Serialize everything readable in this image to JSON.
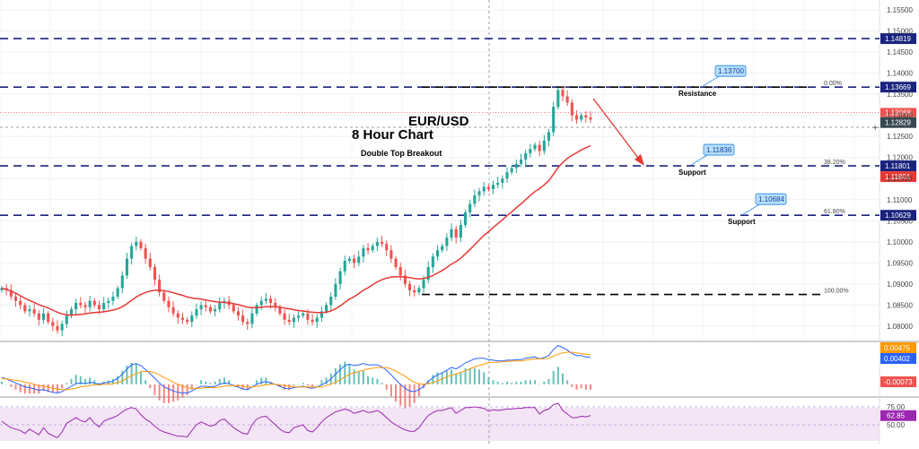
{
  "chart_data": {
    "type": "candlestick",
    "title": "EUR/USD",
    "subtitle": "8 Hour Chart",
    "annotation": "Double Top Breakout",
    "colors": {
      "up": "#26a69a",
      "down": "#ef5350",
      "level": "#1a237e",
      "ma": "#e53935",
      "macd": "#2962ff",
      "signal": "#ff9800",
      "rsi": "#9c27b0",
      "rsi_band": "#f3e5f5"
    },
    "price_axis": {
      "ticks": [
        "1.15500",
        "1.15000",
        "1.14500",
        "1.14000",
        "1.13500",
        "1.13000",
        "1.12500",
        "1.12000",
        "1.11500",
        "1.11000",
        "1.10500",
        "1.10000",
        "1.09500",
        "1.09000",
        "1.08500",
        "1.08000"
      ],
      "last_price": "1.12829"
    },
    "levels": [
      {
        "price": 1.14819,
        "label": "1.14819",
        "note": ""
      },
      {
        "price": 1.13669,
        "label": "1.13669",
        "note": "Resistance",
        "callout": "1.13700",
        "fib": "0.00%"
      },
      {
        "price": 1.11801,
        "label": "1.11801",
        "note": "Support",
        "callout": "1.11836",
        "fib": "38.20%"
      },
      {
        "price": 1.10629,
        "label": "1.10629",
        "note": "Support",
        "callout": "1.10684",
        "fib": "61.80%"
      }
    ],
    "low_level": {
      "price": 1.0875,
      "fib": "100.00%"
    },
    "extra_labels": [
      "1.13068",
      "1.11801"
    ],
    "closes": [
      1.089,
      1.0885,
      1.087,
      1.086,
      1.085,
      1.0835,
      1.084,
      1.083,
      1.0815,
      1.083,
      1.081,
      1.08,
      1.079,
      1.0805,
      1.0825,
      1.084,
      1.0855,
      1.085,
      1.0845,
      1.086,
      1.085,
      1.084,
      1.0855,
      1.086,
      1.087,
      1.089,
      1.092,
      1.096,
      1.099,
      1.1,
      1.0985,
      1.096,
      1.094,
      1.091,
      1.088,
      1.086,
      1.0845,
      1.083,
      1.082,
      1.0815,
      1.081,
      1.0825,
      1.084,
      1.085,
      1.0845,
      1.0835,
      1.084,
      1.0855,
      1.086,
      1.085,
      1.0835,
      1.0825,
      1.081,
      1.0805,
      1.083,
      1.085,
      1.086,
      1.0865,
      1.0855,
      1.0845,
      1.083,
      1.0815,
      1.081,
      1.082,
      1.0825,
      1.083,
      1.0815,
      1.081,
      1.082,
      1.0835,
      1.085,
      1.087,
      1.09,
      1.093,
      1.0955,
      1.096,
      1.095,
      1.0965,
      1.0985,
      1.098,
      1.099,
      1.1,
      1.0995,
      1.098,
      1.096,
      1.094,
      1.092,
      1.09,
      1.0885,
      1.088,
      1.089,
      1.091,
      1.094,
      1.0965,
      1.098,
      1.099,
      1.101,
      1.103,
      1.101,
      1.104,
      1.107,
      1.109,
      1.111,
      1.112,
      1.113,
      1.1125,
      1.1135,
      1.114,
      1.115,
      1.1165,
      1.1175,
      1.1185,
      1.1195,
      1.121,
      1.122,
      1.123,
      1.1215,
      1.124,
      1.126,
      1.132,
      1.136,
      1.1345,
      1.133,
      1.13,
      1.129,
      1.13,
      1.1295,
      1.129
    ],
    "ma": [
      1.089,
      1.0887,
      1.0883,
      1.0878,
      1.0872,
      1.0866,
      1.0861,
      1.0856,
      1.0851,
      1.0847,
      1.0843,
      1.0838,
      1.0833,
      1.0829,
      1.0827,
      1.0826,
      1.0827,
      1.0828,
      1.0829,
      1.0831,
      1.0832,
      1.0833,
      1.0834,
      1.0836,
      1.0838,
      1.0841,
      1.0846,
      1.0853,
      1.0861,
      1.0869,
      1.0875,
      1.088,
      1.0883,
      1.0885,
      1.0885,
      1.0884,
      1.0882,
      1.0879,
      1.0876,
      1.0873,
      1.0869,
      1.0867,
      1.0865,
      1.0864,
      1.0862,
      1.086,
      1.0858,
      1.0857,
      1.0856,
      1.0855,
      1.0853,
      1.0851,
      1.0848,
      1.0845,
      1.0844,
      1.0844,
      1.0845,
      1.0846,
      1.0846,
      1.0846,
      1.0845,
      1.0843,
      1.0841,
      1.0839,
      1.0837,
      1.0836,
      1.0834,
      1.0833,
      1.0832,
      1.0832,
      1.0833,
      1.0836,
      1.0841,
      1.0848,
      1.0856,
      1.0864,
      1.087,
      1.0877,
      1.0885,
      1.0891,
      1.0898,
      1.0905,
      1.091,
      1.0914,
      1.0916,
      1.0917,
      1.0917,
      1.0916,
      1.0915,
      1.0913,
      1.0912,
      1.0913,
      1.0916,
      1.092,
      1.0926,
      1.0932,
      1.0939,
      1.0947,
      1.0953,
      1.0961,
      1.0971,
      1.0982,
      1.0993,
      1.1004,
      1.1015,
      1.1024,
      1.1034,
      1.1043,
      1.1052,
      1.1062,
      1.1071,
      1.1081,
      1.109,
      1.11,
      1.111,
      1.1119,
      1.1126,
      1.1135,
      1.1145,
      1.116,
      1.1176,
      1.1188,
      1.1198,
      1.1205,
      1.1211,
      1.1218,
      1.1223,
      1.1228
    ],
    "macd_axis": {
      "labels": [
        "0.00475",
        "0.00402",
        "-0.00073"
      ]
    },
    "rsi_axis": {
      "ticks": [
        "75.00",
        "50.00"
      ],
      "value": "62.85"
    },
    "macd": [
      0.001,
      0.0008,
      0.0005,
      0.0002,
      -0.0001,
      -0.0004,
      -0.0005,
      -0.0007,
      -0.0009,
      -0.0008,
      -0.001,
      -0.0012,
      -0.0013,
      -0.0011,
      -0.0007,
      -0.0003,
      0.0001,
      0.0002,
      0.0001,
      0.0003,
      0.0002,
      0.0,
      0.0002,
      0.0003,
      0.0005,
      0.0009,
      0.0015,
      0.0023,
      0.0029,
      0.0031,
      0.0028,
      0.0022,
      0.0016,
      0.0009,
      0.0002,
      -0.0004,
      -0.0007,
      -0.001,
      -0.0012,
      -0.0013,
      -0.0013,
      -0.001,
      -0.0006,
      -0.0003,
      -0.0003,
      -0.0004,
      -0.0003,
      0.0,
      0.0002,
      0.0001,
      -0.0002,
      -0.0004,
      -0.0007,
      -0.0008,
      -0.0004,
      0.0,
      0.0003,
      0.0004,
      0.0002,
      0.0,
      -0.0003,
      -0.0006,
      -0.0007,
      -0.0005,
      -0.0004,
      -0.0003,
      -0.0005,
      -0.0006,
      -0.0004,
      -0.0001,
      0.0003,
      0.0008,
      0.0015,
      0.0022,
      0.0028,
      0.003,
      0.0028,
      0.0029,
      0.0031,
      0.0029,
      0.0029,
      0.0029,
      0.0026,
      0.0021,
      0.0014,
      0.0007,
      0.0,
      -0.0006,
      -0.001,
      -0.0011,
      -0.0008,
      -0.0003,
      0.0004,
      0.001,
      0.0014,
      0.0017,
      0.0021,
      0.0025,
      0.0023,
      0.0027,
      0.0032,
      0.0035,
      0.0038,
      0.0039,
      0.0039,
      0.0037,
      0.0036,
      0.0035,
      0.0035,
      0.0036,
      0.0036,
      0.0037,
      0.0037,
      0.0039,
      0.004,
      0.0041,
      0.0038,
      0.004,
      0.0043,
      0.0052,
      0.0058,
      0.0055,
      0.0051,
      0.0046,
      0.0043,
      0.0043,
      0.0041,
      0.004
    ],
    "signal": [
      0.0008,
      0.0008,
      0.0007,
      0.0006,
      0.0005,
      0.0003,
      0.0002,
      0.0,
      -0.0002,
      -0.0003,
      -0.0004,
      -0.0006,
      -0.0007,
      -0.0008,
      -0.0008,
      -0.0007,
      -0.0006,
      -0.0004,
      -0.0003,
      -0.0002,
      -0.0001,
      -0.0001,
      0.0,
      0.0,
      0.0001,
      0.0003,
      0.0005,
      0.0009,
      0.0013,
      0.0016,
      0.0019,
      0.0019,
      0.0019,
      0.0017,
      0.0014,
      0.001,
      0.0007,
      0.0003,
      0.0,
      -0.0003,
      -0.0005,
      -0.0006,
      -0.0006,
      -0.0006,
      -0.0005,
      -0.0005,
      -0.0005,
      -0.0004,
      -0.0003,
      -0.0002,
      -0.0002,
      -0.0002,
      -0.0003,
      -0.0004,
      -0.0004,
      -0.0003,
      -0.0002,
      -0.0001,
      0.0,
      0.0,
      -0.0001,
      -0.0002,
      -0.0003,
      -0.0004,
      -0.0004,
      -0.0004,
      -0.0004,
      -0.0004,
      -0.0004,
      -0.0004,
      -0.0002,
      0.0,
      0.0003,
      0.0007,
      0.0011,
      0.0015,
      0.0017,
      0.0019,
      0.0021,
      0.0023,
      0.0024,
      0.0025,
      0.0025,
      0.0025,
      0.0023,
      0.002,
      0.0016,
      0.0012,
      0.0007,
      0.0003,
      0.0001,
      0.0,
      0.0001,
      0.0003,
      0.0005,
      0.0008,
      0.0011,
      0.0014,
      0.0015,
      0.0018,
      0.002,
      0.0023,
      0.0026,
      0.0028,
      0.003,
      0.0032,
      0.0033,
      0.0033,
      0.0034,
      0.0034,
      0.0035,
      0.0035,
      0.0035,
      0.0036,
      0.0037,
      0.0038,
      0.0038,
      0.0038,
      0.0039,
      0.0042,
      0.0045,
      0.0047,
      0.0048,
      0.0048,
      0.0047,
      0.0046,
      0.0045,
      0.0044
    ],
    "rsi": [
      55,
      50,
      46,
      44,
      42,
      38,
      44,
      40,
      36,
      46,
      38,
      35,
      32,
      40,
      52,
      56,
      60,
      56,
      54,
      60,
      52,
      47,
      55,
      58,
      60,
      63,
      68,
      72,
      74,
      72,
      64,
      58,
      54,
      48,
      43,
      40,
      38,
      36,
      34,
      34,
      33,
      42,
      50,
      54,
      51,
      48,
      50,
      56,
      58,
      52,
      46,
      42,
      38,
      37,
      50,
      58,
      61,
      62,
      56,
      50,
      44,
      40,
      39,
      46,
      48,
      50,
      42,
      40,
      46,
      54,
      60,
      64,
      68,
      70,
      72,
      70,
      66,
      68,
      70,
      67,
      68,
      70,
      66,
      60,
      54,
      50,
      46,
      43,
      41,
      41,
      46,
      55,
      63,
      67,
      70,
      70,
      72,
      74,
      66,
      70,
      74,
      74,
      75,
      74,
      73,
      69,
      71,
      70,
      71,
      72,
      72,
      73,
      73,
      74,
      74,
      74,
      65,
      70,
      72,
      78,
      80,
      70,
      65,
      60,
      60,
      62,
      61,
      63
    ],
    "x_range": [
      0,
      127
    ],
    "ylim": [
      1.077,
      1.1565
    ]
  }
}
